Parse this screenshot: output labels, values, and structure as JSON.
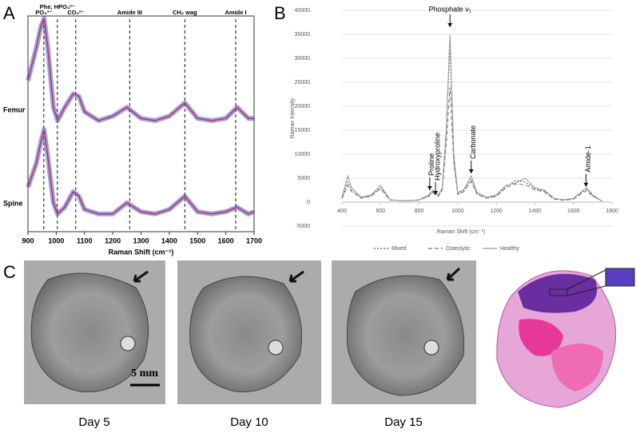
{
  "figure": {
    "panel_labels": [
      "A",
      "B",
      "C"
    ],
    "captions": [
      "Day 5",
      "Day 10",
      "Day 15"
    ],
    "scale_bar": "5 mm"
  },
  "chart_data": [
    {
      "type": "line",
      "x_label": "Raman Shift (cm⁻¹)",
      "x": [
        900,
        930,
        945,
        957,
        970,
        990,
        1005,
        1030,
        1060,
        1080,
        1100,
        1150,
        1200,
        1250,
        1300,
        1350,
        1400,
        1455,
        1500,
        1550,
        1600,
        1640,
        1680,
        1700
      ],
      "series": [
        {
          "name": "Femur",
          "color": "#b8344e",
          "values": [
            68,
            83,
            92,
            96,
            83,
            56,
            50,
            56,
            62,
            61,
            54,
            50,
            52,
            56,
            51,
            50,
            52,
            58,
            51,
            50,
            51,
            56,
            51,
            51
          ]
        },
        {
          "name": "Spine",
          "color": "#b8344e",
          "values": [
            20,
            31,
            40,
            46,
            34,
            13,
            8,
            11,
            18,
            16,
            10,
            8,
            8,
            13,
            9,
            8,
            10,
            16,
            9,
            8,
            9,
            11,
            8,
            9
          ]
        }
      ],
      "annotations": [
        {
          "text": "PO₄³⁻",
          "x": 956
        },
        {
          "text": "Phe, HPO₄²⁻",
          "x": 1004
        },
        {
          "text": "CO₃²⁻",
          "x": 1069
        },
        {
          "text": "Amide III",
          "x": 1260
        },
        {
          "text": "CH₂ wag",
          "x": 1455
        },
        {
          "text": "Amide I",
          "x": 1635
        }
      ],
      "xlim": [
        900,
        1700
      ],
      "xticks": [
        900,
        1000,
        1100,
        1200,
        1300,
        1400,
        1500,
        1600,
        1700
      ],
      "ylim": [
        0,
        100
      ]
    },
    {
      "type": "line",
      "x_label": "Raman Shift (cm⁻¹)",
      "y_label": "Raman Intensity",
      "x": [
        400,
        430,
        450,
        500,
        550,
        600,
        650,
        700,
        750,
        800,
        850,
        870,
        900,
        920,
        940,
        960,
        980,
        1000,
        1030,
        1070,
        1100,
        1150,
        1200,
        1250,
        1300,
        1350,
        1400,
        1450,
        1500,
        1550,
        1600,
        1650,
        1670,
        1700,
        1750
      ],
      "series": [
        {
          "name": "Mixed",
          "color": "#555555",
          "dash": "2,2",
          "values": [
            800,
            4200,
            2500,
            900,
            1300,
            3000,
            500,
            300,
            300,
            500,
            1300,
            2200,
            1300,
            2800,
            14000,
            33000,
            9000,
            1800,
            2300,
            4800,
            1800,
            900,
            1300,
            3200,
            4500,
            4200,
            2800,
            2300,
            700,
            400,
            700,
            2200,
            2700,
            1300,
            200
          ]
        },
        {
          "name": "Osteolytic",
          "color": "#777777",
          "dash": "5,3",
          "values": [
            700,
            3500,
            2200,
            800,
            1200,
            2800,
            400,
            300,
            300,
            400,
            1200,
            2000,
            1200,
            2500,
            12000,
            24000,
            8000,
            1600,
            2100,
            4300,
            1600,
            800,
            1200,
            3000,
            3800,
            3600,
            2600,
            2100,
            600,
            400,
            600,
            2000,
            2400,
            1200,
            200
          ]
        },
        {
          "name": "Healthy",
          "color": "#9a9a9a",
          "dash": "",
          "values": [
            1000,
            5500,
            3000,
            1000,
            1500,
            3500,
            500,
            300,
            300,
            500,
            1500,
            2500,
            1500,
            3000,
            15000,
            35000,
            10000,
            2000,
            2500,
            5500,
            2000,
            1000,
            1500,
            3500,
            4000,
            5000,
            3000,
            2500,
            800,
            500,
            800,
            2500,
            3000,
            1500,
            200
          ]
        }
      ],
      "annotations": [
        {
          "text": "Phosphate ν₁",
          "x": 960,
          "y": 36500
        },
        {
          "text": "Proline",
          "x": 855,
          "y": 2500
        },
        {
          "text": "Hydroxyproline",
          "x": 885,
          "y": 1500
        },
        {
          "text": "Carbonate",
          "x": 1070,
          "y": 6000
        },
        {
          "text": "Amide-1",
          "x": 1665,
          "y": 3200
        }
      ],
      "xlim": [
        400,
        1800
      ],
      "xticks": [
        400,
        600,
        800,
        1000,
        1200,
        1400,
        1600,
        1800
      ],
      "ylim": [
        -5000,
        40000
      ],
      "yticks": [
        -5000,
        0,
        5000,
        10000,
        15000,
        20000,
        25000,
        30000,
        35000,
        40000
      ],
      "grid": true,
      "legend": "bottom"
    }
  ]
}
